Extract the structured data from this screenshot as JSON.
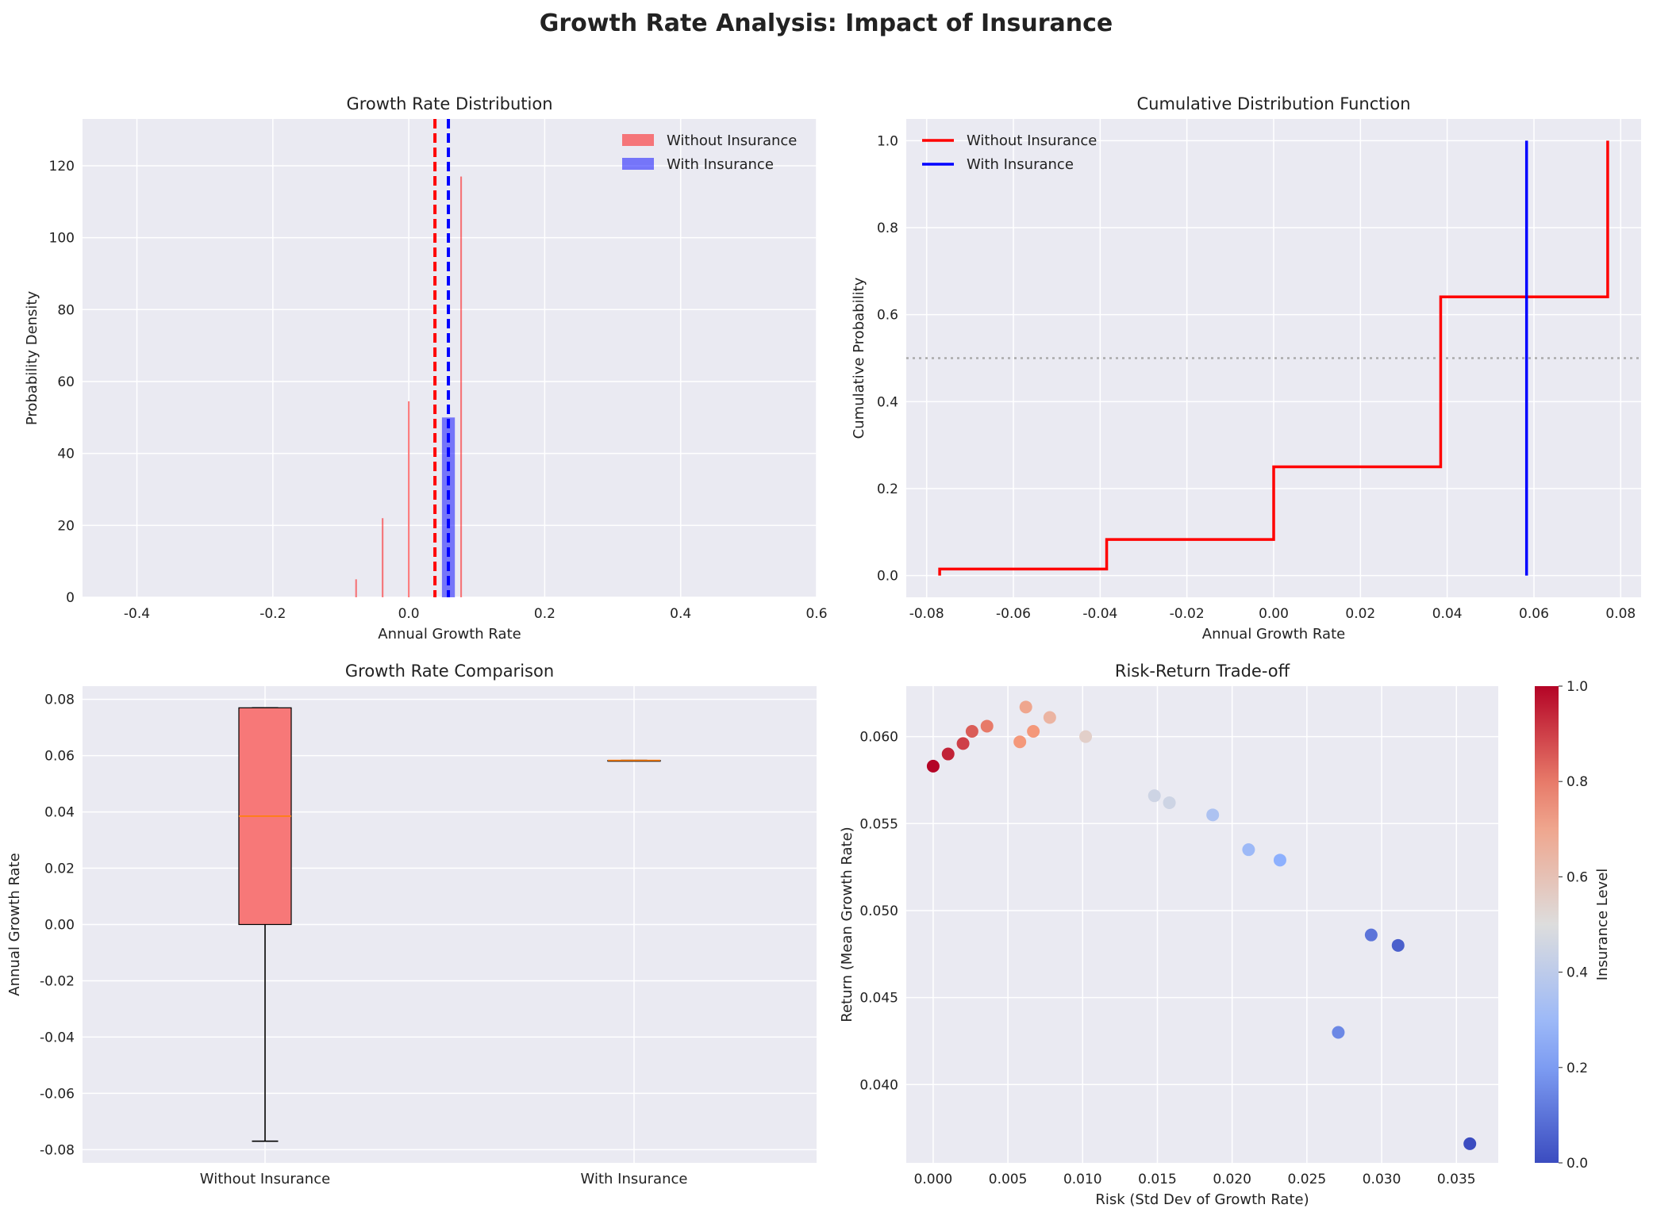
{
  "figure": {
    "title": "Growth Rate Analysis: Impact of Insurance"
  },
  "colors": {
    "red": "#ff0000",
    "blue": "#0000ff",
    "grid_bg": "#eaeaf2",
    "box_fill": "#f77878",
    "median": "#ff7f0e"
  },
  "chart_data": [
    {
      "type": "bar",
      "title": "Growth Rate Distribution",
      "xlabel": "Annual Growth Rate",
      "ylabel": "Probability Density",
      "xlim": [
        -0.48,
        0.6
      ],
      "ylim": [
        0,
        133
      ],
      "xticks": [
        "-0.4",
        "-0.2",
        "0.0",
        "0.2",
        "0.4",
        "0.6"
      ],
      "xtick_values": [
        -0.4,
        -0.2,
        0.0,
        0.2,
        0.4,
        0.6
      ],
      "yticks": [
        "0",
        "20",
        "40",
        "60",
        "80",
        "100",
        "120"
      ],
      "ytick_values": [
        0,
        20,
        40,
        60,
        80,
        100,
        120
      ],
      "series": [
        {
          "name": "Without Insurance",
          "color": "#ff0000",
          "bars": [
            {
              "x": -0.0775,
              "value": 5
            },
            {
              "x": -0.0385,
              "value": 22
            },
            {
              "x": 0.0,
              "value": 54.5
            },
            {
              "x": 0.0385,
              "value": 0.5
            },
            {
              "x": 0.077,
              "value": 117
            }
          ]
        },
        {
          "name": "With Insurance",
          "color": "#0000ff",
          "bars": [
            {
              "x": 0.0583,
              "value": 50,
              "width": 0.019
            }
          ]
        }
      ],
      "mean_lines": [
        {
          "x": 0.0385,
          "color": "#ff0000"
        },
        {
          "x": 0.0583,
          "color": "#0000ff"
        }
      ],
      "legend": {
        "placement": "top-right",
        "entries": [
          "Without Insurance",
          "With Insurance"
        ]
      },
      "grid": true
    },
    {
      "type": "line",
      "title": "Cumulative Distribution Function",
      "xlabel": "Annual Growth Rate",
      "ylabel": "Cumulative Probability",
      "xlim": [
        -0.0847,
        0.0847
      ],
      "ylim": [
        -0.05,
        1.05
      ],
      "xticks": [
        "-0.08",
        "-0.06",
        "-0.04",
        "-0.02",
        "0.00",
        "0.02",
        "0.04",
        "0.06",
        "0.08"
      ],
      "xtick_values": [
        -0.08,
        -0.06,
        -0.04,
        -0.02,
        0.0,
        0.02,
        0.04,
        0.06,
        0.08
      ],
      "yticks": [
        "0.0",
        "0.2",
        "0.4",
        "0.6",
        "0.8",
        "1.0"
      ],
      "ytick_values": [
        0,
        0.2,
        0.4,
        0.6,
        0.8,
        1.0
      ],
      "series": [
        {
          "name": "Without Insurance",
          "color": "#ff0000",
          "x": [
            -0.077,
            -0.077,
            -0.0385,
            -0.0385,
            0.0,
            0.0,
            0.0385,
            0.0385,
            0.077,
            0.077
          ],
          "y": [
            0.0,
            0.015,
            0.015,
            0.083,
            0.083,
            0.25,
            0.25,
            0.641,
            0.641,
            1.0
          ]
        },
        {
          "name": "With Insurance",
          "color": "#0000ff",
          "x": [
            0.0583,
            0.0583
          ],
          "y": [
            0.0,
            1.0
          ]
        }
      ],
      "reference_line": {
        "y": 0.5,
        "style": "dotted",
        "color": "#aaaaaa"
      },
      "legend": {
        "placement": "top-left",
        "entries": [
          "Without Insurance",
          "With Insurance"
        ]
      },
      "grid": true
    },
    {
      "type": "box",
      "title": "Growth Rate Comparison",
      "xlabel": "",
      "ylabel": "Annual Growth Rate",
      "categories": [
        "Without Insurance",
        "With Insurance"
      ],
      "ylim": [
        -0.0847,
        0.0847
      ],
      "yticks": [
        "-0.08",
        "-0.06",
        "-0.04",
        "-0.02",
        "0.00",
        "0.02",
        "0.04",
        "0.06",
        "0.08"
      ],
      "ytick_values": [
        -0.08,
        -0.06,
        -0.04,
        -0.02,
        0.0,
        0.02,
        0.04,
        0.06,
        0.08
      ],
      "boxes": [
        {
          "category": "Without Insurance",
          "whisker_low": -0.077,
          "q1": 0.0,
          "median": 0.0385,
          "q3": 0.077,
          "whisker_high": 0.077
        },
        {
          "category": "With Insurance",
          "whisker_low": 0.0583,
          "q1": 0.0583,
          "median": 0.0583,
          "q3": 0.0583,
          "whisker_high": 0.0583
        }
      ],
      "grid": true
    },
    {
      "type": "scatter",
      "title": "Risk-Return Trade-off",
      "xlabel": "Risk (Std Dev of Growth Rate)",
      "ylabel": "Return (Mean Growth Rate)",
      "xlim": [
        -0.0018,
        0.0378
      ],
      "ylim": [
        0.0355,
        0.0629
      ],
      "xticks": [
        "0.000",
        "0.005",
        "0.010",
        "0.015",
        "0.020",
        "0.025",
        "0.030",
        "0.035"
      ],
      "xtick_values": [
        0,
        0.005,
        0.01,
        0.015,
        0.02,
        0.025,
        0.03,
        0.035
      ],
      "yticks": [
        "0.040",
        "0.045",
        "0.050",
        "0.055",
        "0.060"
      ],
      "ytick_values": [
        0.04,
        0.045,
        0.05,
        0.055,
        0.06
      ],
      "points": [
        {
          "x": 0.0,
          "y": 0.0583,
          "level": 1.0
        },
        {
          "x": 0.001,
          "y": 0.059,
          "level": 0.95
        },
        {
          "x": 0.002,
          "y": 0.0596,
          "level": 0.9
        },
        {
          "x": 0.0026,
          "y": 0.0603,
          "level": 0.85
        },
        {
          "x": 0.0036,
          "y": 0.0606,
          "level": 0.8
        },
        {
          "x": 0.0058,
          "y": 0.0597,
          "level": 0.75
        },
        {
          "x": 0.0062,
          "y": 0.0617,
          "level": 0.7
        },
        {
          "x": 0.0067,
          "y": 0.0603,
          "level": 0.75
        },
        {
          "x": 0.0078,
          "y": 0.0611,
          "level": 0.65
        },
        {
          "x": 0.0102,
          "y": 0.06,
          "level": 0.55
        },
        {
          "x": 0.0148,
          "y": 0.0566,
          "level": 0.45
        },
        {
          "x": 0.0158,
          "y": 0.0562,
          "level": 0.45
        },
        {
          "x": 0.0187,
          "y": 0.0555,
          "level": 0.35
        },
        {
          "x": 0.0211,
          "y": 0.0535,
          "level": 0.3
        },
        {
          "x": 0.0232,
          "y": 0.0529,
          "level": 0.25
        },
        {
          "x": 0.0271,
          "y": 0.043,
          "level": 0.15
        },
        {
          "x": 0.0293,
          "y": 0.0486,
          "level": 0.1
        },
        {
          "x": 0.0311,
          "y": 0.048,
          "level": 0.05
        },
        {
          "x": 0.0359,
          "y": 0.0366,
          "level": 0.0
        }
      ],
      "colorbar": {
        "label": "Insurance Level",
        "range": [
          0,
          1
        ],
        "ticks": [
          "0.0",
          "0.2",
          "0.4",
          "0.6",
          "0.8",
          "1.0"
        ],
        "tick_values": [
          0,
          0.2,
          0.4,
          0.6,
          0.8,
          1.0
        ],
        "colormap": "coolwarm"
      },
      "grid": true
    }
  ]
}
